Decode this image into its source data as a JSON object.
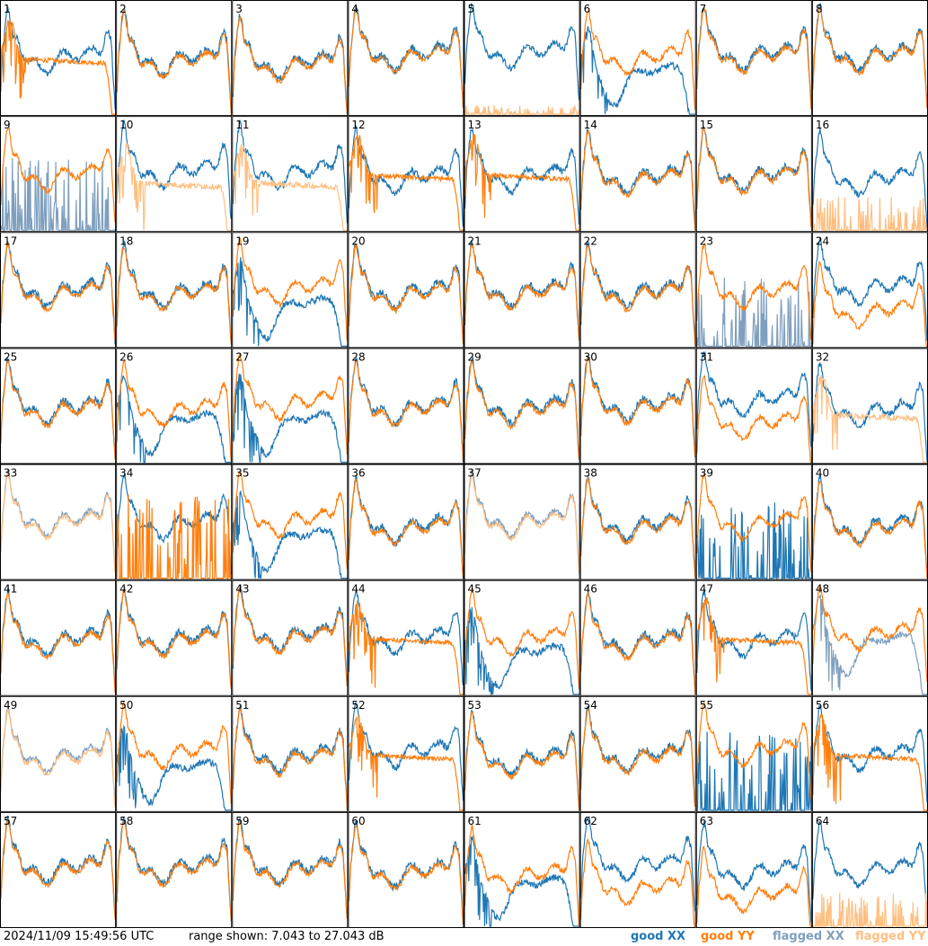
{
  "chart_data": {
    "type": "line",
    "panel_count": 64,
    "columns": 8,
    "rows": 8,
    "panel_labels": [
      "1",
      "2",
      "3",
      "4",
      "5",
      "6",
      "7",
      "8",
      "9",
      "10",
      "11",
      "12",
      "13",
      "14",
      "15",
      "16",
      "17",
      "18",
      "19",
      "20",
      "21",
      "22",
      "23",
      "24",
      "25",
      "26",
      "27",
      "28",
      "29",
      "30",
      "31",
      "32",
      "33",
      "34",
      "35",
      "36",
      "37",
      "38",
      "39",
      "40",
      "41",
      "42",
      "43",
      "44",
      "45",
      "46",
      "47",
      "48",
      "49",
      "50",
      "51",
      "52",
      "53",
      "54",
      "55",
      "56",
      "57",
      "58",
      "59",
      "60",
      "61",
      "62",
      "63",
      "64"
    ],
    "y_range_db": [
      7.043,
      27.043
    ],
    "series": [
      {
        "name": "good XX",
        "color": "#1f77b4"
      },
      {
        "name": "good YY",
        "color": "#ff7f0e"
      },
      {
        "name": "flagged XX",
        "color": "#7f9fbf"
      },
      {
        "name": "flagged YY",
        "color": "#ffbf80"
      }
    ],
    "panel_states": {
      "normal": [
        2,
        3,
        4,
        7,
        14,
        15,
        17,
        18,
        20,
        21,
        22,
        25,
        28,
        29,
        30,
        36,
        38,
        40,
        41,
        42,
        43,
        46,
        51,
        54,
        57,
        58,
        59,
        60
      ],
      "yy_rolloff": [
        1,
        12,
        13,
        44,
        47,
        52,
        56
      ],
      "xx_rolloff": [
        6,
        19,
        26,
        27,
        35,
        45,
        50,
        61
      ],
      "yy_below_xx": [
        24,
        31,
        62,
        63
      ],
      "xx_near_floor": [
        5
      ],
      "xx_missing": [
        16,
        64
      ],
      "xx_flagged_spiky": [
        9,
        23
      ],
      "yy_flagged": [
        10,
        11,
        32
      ],
      "both_flagged": [
        33,
        37,
        49
      ],
      "xx_flagged_only": [
        48
      ],
      "yy_spiky_dead": [
        34
      ],
      "xx_spiky_dead": [
        39,
        55
      ]
    }
  },
  "footer": {
    "timestamp": "2024/11/09 15:49:56 UTC",
    "range_text": "range shown: 7.043 to 27.043 dB",
    "legend": [
      "good XX",
      "good YY",
      "flagged XX",
      "flagged YY"
    ]
  }
}
